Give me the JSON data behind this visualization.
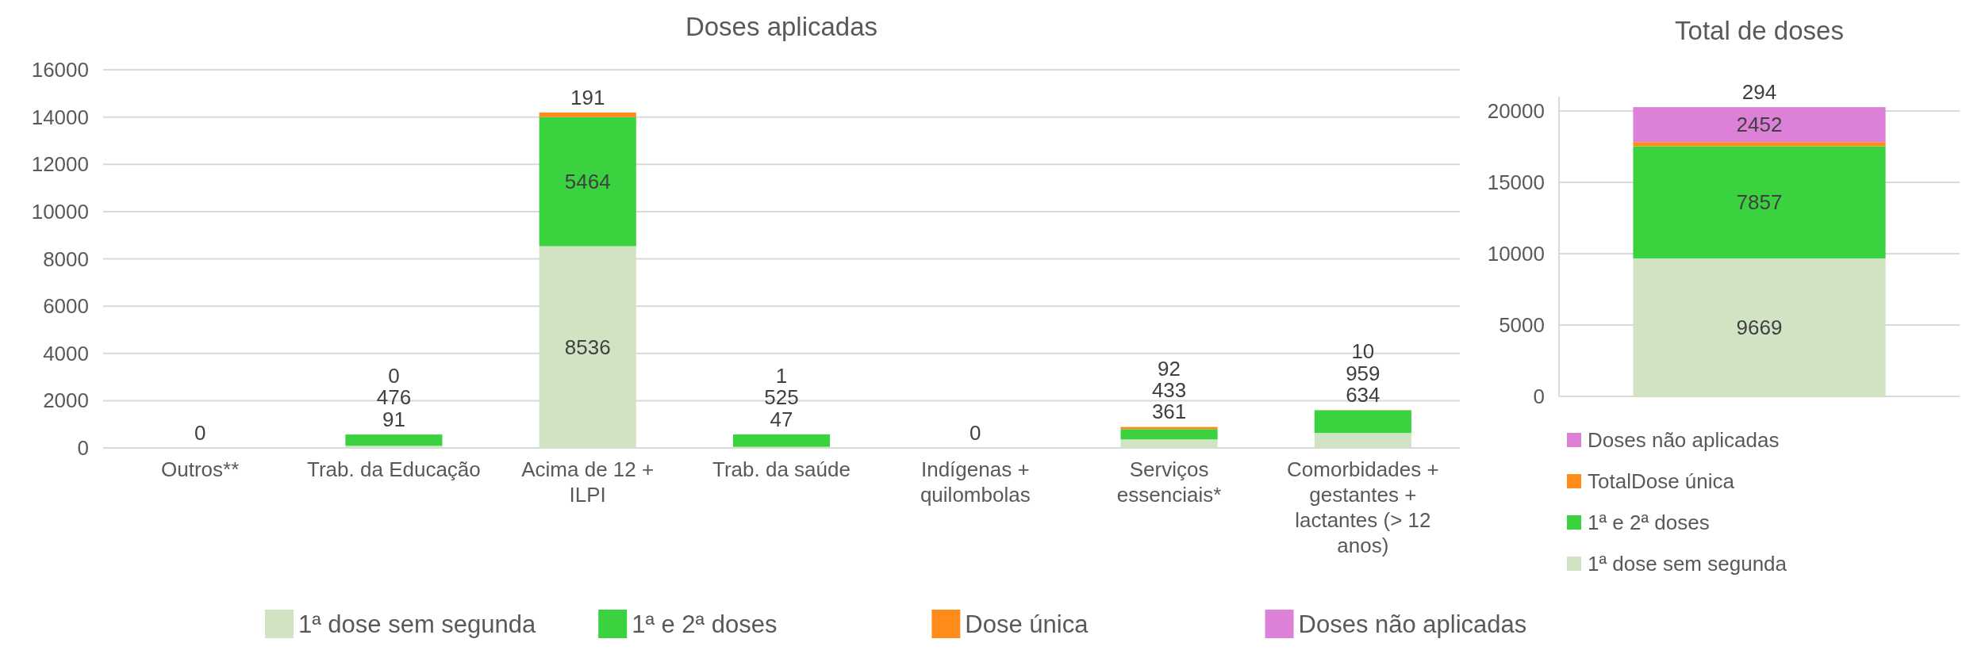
{
  "chart_data": [
    {
      "type": "bar",
      "title": "Doses aplicadas",
      "stacked": true,
      "legend": "bottom",
      "grid": "y",
      "ylim": [
        0,
        16000
      ],
      "yticks": [
        0,
        2000,
        4000,
        6000,
        8000,
        10000,
        12000,
        14000,
        16000
      ],
      "categories": [
        "Outros**",
        "Trab. da Educação",
        "Acima de 12 + ILPI",
        "Trab. da saúde",
        "Indígenas + quilombolas",
        "Serviços essenciais*",
        "Comorbidades + gestantes + lactantes (> 12 anos)"
      ],
      "series": [
        {
          "name": "1ª dose sem segunda",
          "color": "#d0e4c4",
          "values": [
            0,
            91,
            8536,
            47,
            0,
            361,
            634
          ],
          "value_labels": [
            "0",
            "91",
            "8536",
            "47",
            "0",
            "361",
            "634"
          ]
        },
        {
          "name": "1ª e 2ª doses",
          "color": "#3ad23f",
          "values": [
            0,
            476,
            5464,
            525,
            0,
            433,
            959
          ],
          "value_labels": [
            null,
            "476",
            "5464",
            "525",
            null,
            "433",
            "959"
          ]
        },
        {
          "name": "Dose única",
          "color": "#ff8c1a",
          "values": [
            0,
            0,
            191,
            1,
            0,
            92,
            10
          ],
          "value_labels": [
            null,
            "0",
            "191",
            "1",
            null,
            "92",
            "10"
          ]
        },
        {
          "name": "Doses não aplicadas",
          "color": "#dd80d8",
          "values": [
            null,
            null,
            null,
            null,
            null,
            null,
            null
          ]
        }
      ]
    },
    {
      "type": "bar",
      "title": "Total de doses",
      "stacked": true,
      "legend": "bottom",
      "grid": "y",
      "data_labels": true,
      "ylim": [
        0,
        21000
      ],
      "yticks": [
        0,
        5000,
        10000,
        15000,
        20000
      ],
      "categories": [
        null
      ],
      "series": [
        {
          "name": "1ª dose sem segunda",
          "color": "#d0e4c4",
          "values": [
            9669
          ]
        },
        {
          "name": "1ª e 2ª doses",
          "color": "#3ad23f",
          "values": [
            7857
          ]
        },
        {
          "name": "TotalDose única",
          "color": "#ff8c1a",
          "values": [
            294
          ]
        },
        {
          "name": "Doses não aplicadas",
          "color": "#dd80d8",
          "values": [
            2452
          ]
        }
      ]
    }
  ]
}
